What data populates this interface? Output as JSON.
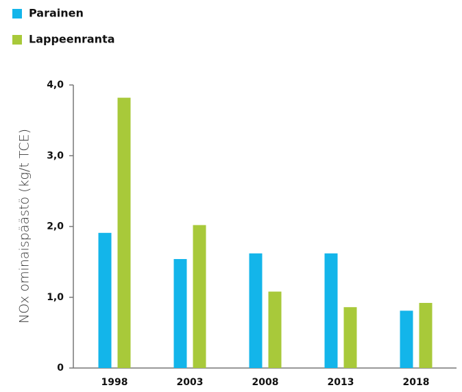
{
  "chart_data": {
    "type": "bar",
    "y_label": "NOx ominaispäästö (kg/t TCE)",
    "categories": [
      "1998",
      "2003",
      "2008",
      "2013",
      "2018"
    ],
    "series": [
      {
        "name": "Parainen",
        "color": "#13b5ea",
        "values": [
          1.91,
          1.54,
          1.62,
          1.62,
          0.81
        ]
      },
      {
        "name": "Lappeenranta",
        "color": "#a8c93a",
        "values": [
          3.82,
          2.02,
          1.08,
          0.86,
          0.92
        ]
      }
    ],
    "ylim": [
      0,
      4
    ],
    "yticks": [
      0,
      {
        "value": 1,
        "label": "1,0"
      },
      {
        "value": 2,
        "label": "2,0"
      },
      {
        "value": 3,
        "label": "3,0"
      },
      {
        "value": 4,
        "label": "4,0"
      }
    ],
    "legend": "top-left"
  }
}
